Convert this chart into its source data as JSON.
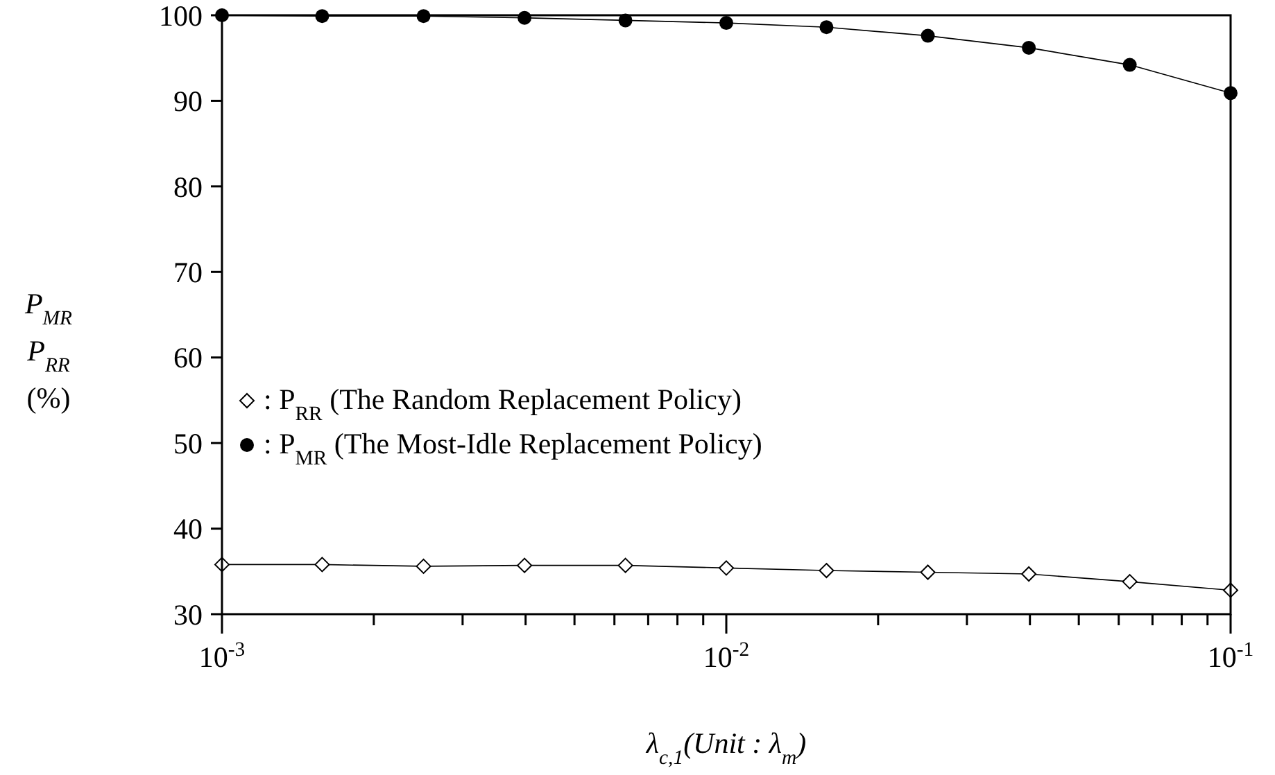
{
  "chart_data": {
    "type": "line",
    "xlabel": "λ$_{c,1}$(Unit :  λ$_{m}$)",
    "ylabel": [
      "P$_{MR}$",
      "P$_{RR}$",
      "(%)"
    ],
    "x": [
      0.001,
      0.00158,
      0.00251,
      0.00398,
      0.00631,
      0.01,
      0.0158,
      0.0251,
      0.0398,
      0.0631,
      0.1
    ],
    "series": [
      {
        "name": ": P$_{RR}$ (The Random Replacement Policy)",
        "color": "#000000",
        "marker": "diamond",
        "values": [
          35.8,
          35.8,
          35.6,
          35.7,
          35.7,
          35.4,
          35.1,
          34.9,
          34.7,
          33.8,
          32.8
        ]
      },
      {
        "name": ": P$_{MR}$ (The Most-Idle Replacement Policy)",
        "color": "#000000",
        "marker": "circle",
        "values": [
          100,
          99.9,
          99.9,
          99.7,
          99.4,
          99.1,
          98.6,
          97.6,
          96.2,
          94.2,
          90.9
        ]
      }
    ],
    "log": "x",
    "xlim": [
      0.001,
      0.1
    ],
    "xticks": [
      {
        "value": 0.001,
        "label": "10$^{-3}$"
      },
      {
        "value": 0.002,
        "label": null
      },
      {
        "value": 0.003,
        "label": null
      },
      {
        "value": 0.004,
        "label": null
      },
      {
        "value": 0.005,
        "label": null
      },
      {
        "value": 0.006,
        "label": null
      },
      {
        "value": 0.007,
        "label": null
      },
      {
        "value": 0.008,
        "label": null
      },
      {
        "value": 0.009,
        "label": null
      },
      {
        "value": 0.01,
        "label": "10$^{-2}$"
      },
      {
        "value": 0.02,
        "label": null
      },
      {
        "value": 0.03,
        "label": null
      },
      {
        "value": 0.04,
        "label": null
      },
      {
        "value": 0.05,
        "label": null
      },
      {
        "value": 0.06,
        "label": null
      },
      {
        "value": 0.07,
        "label": null
      },
      {
        "value": 0.08,
        "label": null
      },
      {
        "value": 0.09,
        "label": null
      },
      {
        "value": 0.1,
        "label": "10$^{-1}$"
      }
    ],
    "ylim": [
      30,
      100
    ],
    "yticks": [
      30,
      40,
      50,
      60,
      70,
      80,
      90,
      100
    ],
    "legend": "center left",
    "grid": false,
    "line_style": "solid"
  }
}
